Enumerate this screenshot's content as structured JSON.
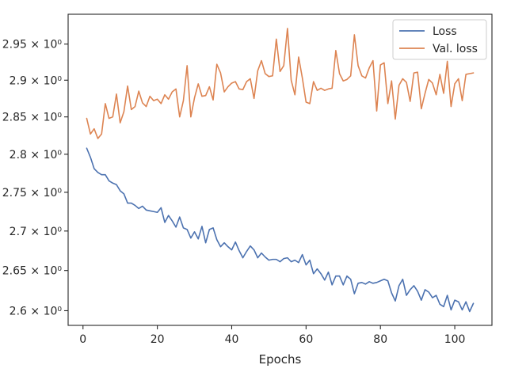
{
  "chart_data": {
    "type": "line",
    "title": "",
    "xlabel": "Epochs",
    "ylabel": "",
    "y_scale": "log",
    "xlim": [
      -4,
      110
    ],
    "ylim": [
      2.582,
      2.992
    ],
    "x_ticks": [
      0,
      20,
      40,
      60,
      80,
      100
    ],
    "x_tick_labels": [
      "0",
      "20",
      "40",
      "60",
      "80",
      "100"
    ],
    "y_ticks": [
      2.6,
      2.65,
      2.7,
      2.75,
      2.8,
      2.85,
      2.9,
      2.95
    ],
    "y_tick_labels": [
      "2.6 × 10⁰",
      "2.65 × 10⁰",
      "2.7 × 10⁰",
      "2.75 × 10⁰",
      "2.8 × 10⁰",
      "2.85 × 10⁰",
      "2.9 × 10⁰",
      "2.95 × 10⁰"
    ],
    "grid": false,
    "legend_position": "top-right",
    "series": [
      {
        "name": "Loss",
        "color": "#4c72b0",
        "x_start": 1,
        "values": [
          2.808,
          2.796,
          2.781,
          2.776,
          2.773,
          2.773,
          2.765,
          2.762,
          2.76,
          2.752,
          2.748,
          2.736,
          2.736,
          2.733,
          2.729,
          2.732,
          2.727,
          2.726,
          2.725,
          2.724,
          2.73,
          2.711,
          2.72,
          2.713,
          2.705,
          2.718,
          2.704,
          2.702,
          2.691,
          2.699,
          2.69,
          2.706,
          2.685,
          2.702,
          2.704,
          2.689,
          2.68,
          2.685,
          2.68,
          2.676,
          2.686,
          2.675,
          2.666,
          2.674,
          2.681,
          2.676,
          2.666,
          2.672,
          2.667,
          2.663,
          2.664,
          2.664,
          2.661,
          2.665,
          2.666,
          2.661,
          2.663,
          2.66,
          2.67,
          2.657,
          2.663,
          2.646,
          2.652,
          2.646,
          2.638,
          2.648,
          2.632,
          2.643,
          2.643,
          2.632,
          2.643,
          2.639,
          2.621,
          2.634,
          2.635,
          2.633,
          2.636,
          2.634,
          2.635,
          2.637,
          2.639,
          2.637,
          2.622,
          2.612,
          2.631,
          2.639,
          2.619,
          2.626,
          2.631,
          2.624,
          2.613,
          2.626,
          2.623,
          2.616,
          2.619,
          2.608,
          2.605,
          2.619,
          2.601,
          2.613,
          2.611,
          2.601,
          2.611,
          2.599,
          2.609
        ]
      },
      {
        "name": "Val. loss",
        "color": "#dd8452",
        "x_start": 1,
        "values": [
          2.848,
          2.827,
          2.834,
          2.821,
          2.827,
          2.868,
          2.848,
          2.85,
          2.881,
          2.842,
          2.857,
          2.892,
          2.86,
          2.864,
          2.885,
          2.869,
          2.864,
          2.878,
          2.872,
          2.874,
          2.868,
          2.88,
          2.874,
          2.884,
          2.888,
          2.85,
          2.872,
          2.92,
          2.85,
          2.876,
          2.895,
          2.878,
          2.879,
          2.891,
          2.873,
          2.922,
          2.91,
          2.884,
          2.891,
          2.896,
          2.898,
          2.888,
          2.887,
          2.898,
          2.902,
          2.875,
          2.913,
          2.927,
          2.909,
          2.905,
          2.906,
          2.957,
          2.912,
          2.92,
          2.972,
          2.9,
          2.88,
          2.932,
          2.903,
          2.87,
          2.868,
          2.898,
          2.886,
          2.889,
          2.886,
          2.888,
          2.889,
          2.941,
          2.909,
          2.899,
          2.901,
          2.906,
          2.963,
          2.92,
          2.906,
          2.903,
          2.917,
          2.927,
          2.858,
          2.921,
          2.924,
          2.868,
          2.899,
          2.847,
          2.893,
          2.902,
          2.897,
          2.871,
          2.91,
          2.911,
          2.861,
          2.882,
          2.901,
          2.896,
          2.88,
          2.908,
          2.882,
          2.926,
          2.864,
          2.895,
          2.902,
          2.872,
          2.908,
          2.909,
          2.91
        ]
      }
    ]
  }
}
